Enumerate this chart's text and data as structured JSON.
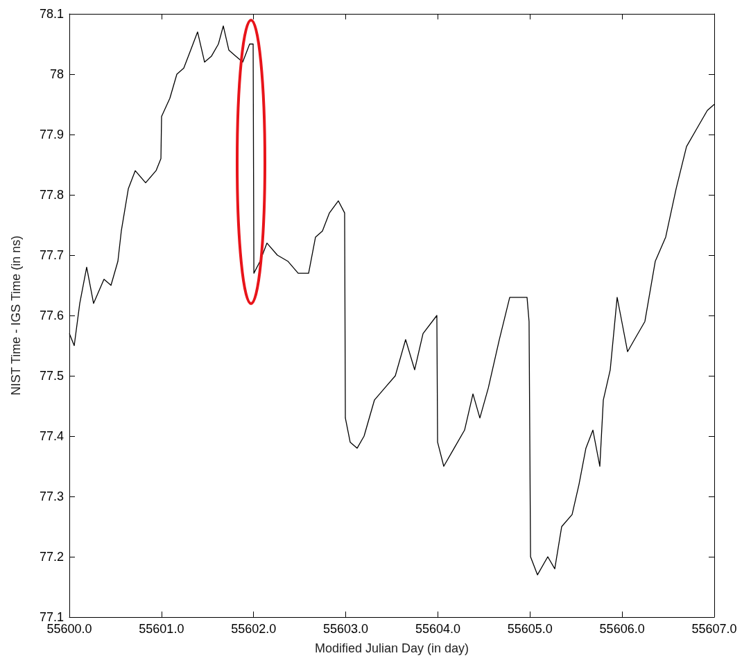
{
  "chart_data": {
    "type": "line",
    "xlabel": "Modified Julian Day (in day)",
    "ylabel": "NIST Time - IGS Time (in ns)",
    "x": [
      55600,
      55600.053,
      55600.113,
      55600.188,
      55600.263,
      55600.376,
      55600.452,
      55600.527,
      55600.564,
      55600.64,
      55600.715,
      55600.828,
      55600.941,
      55600.994,
      55601.001,
      55601.091,
      55601.167,
      55601.242,
      55601.317,
      55601.392,
      55601.468,
      55601.543,
      55601.618,
      55601.671,
      55601.731,
      55601.806,
      55601.882,
      55601.957,
      55601.995,
      55602.003,
      55602.07,
      55602.145,
      55602.258,
      55602.371,
      55602.484,
      55602.597,
      55602.672,
      55602.747,
      55602.823,
      55602.92,
      55602.988,
      55602.996,
      55603.048,
      55603.124,
      55603.199,
      55603.312,
      55603.425,
      55603.538,
      55603.65,
      55603.748,
      55603.839,
      55603.989,
      55603.997,
      55604.064,
      55604.177,
      55604.29,
      55604.381,
      55604.456,
      55604.548,
      55604.667,
      55604.78,
      55604.892,
      55604.968,
      55604.99,
      55605.006,
      55605.081,
      55605.193,
      55605.269,
      55605.344,
      55605.457,
      55605.532,
      55605.607,
      55605.683,
      55605.758,
      55605.796,
      55605.871,
      55605.946,
      55605.984,
      55606.059,
      55606.134,
      55606.247,
      55606.36,
      55606.473,
      55606.586,
      55606.699,
      55606.812,
      55606.925,
      55607
    ],
    "series": [
      {
        "color": "#000000",
        "values": [
          77.57,
          77.55,
          77.62,
          77.68,
          77.62,
          77.66,
          77.65,
          77.69,
          77.74,
          77.81,
          77.84,
          77.82,
          77.84,
          77.86,
          77.93,
          77.96,
          78.0,
          78.01,
          78.04,
          78.07,
          78.02,
          78.03,
          78.05,
          78.08,
          78.04,
          78.03,
          78.02,
          78.05,
          78.05,
          77.67,
          77.69,
          77.72,
          77.7,
          77.69,
          77.67,
          77.67,
          77.73,
          77.74,
          77.77,
          77.79,
          77.77,
          77.43,
          77.39,
          77.38,
          77.4,
          77.46,
          77.48,
          77.5,
          77.56,
          77.51,
          77.57,
          77.6,
          77.39,
          77.35,
          77.38,
          77.41,
          77.47,
          77.43,
          77.48,
          77.56,
          77.63,
          77.63,
          77.63,
          77.59,
          77.2,
          77.17,
          77.2,
          77.18,
          77.25,
          77.27,
          77.32,
          77.38,
          77.41,
          77.35,
          77.46,
          77.51,
          77.63,
          77.6,
          77.54,
          77.56,
          77.59,
          77.69,
          77.73,
          77.81,
          77.88,
          77.91,
          77.94,
          77.95
        ]
      }
    ],
    "xlim": [
      55600,
      55607
    ],
    "xticks": [
      {
        "value": 55600,
        "label": "55600.0"
      },
      {
        "value": 55601,
        "label": "55601.0"
      },
      {
        "value": 55602,
        "label": "55602.0"
      },
      {
        "value": 55603,
        "label": "55603.0"
      },
      {
        "value": 55604,
        "label": "55604.0"
      },
      {
        "value": 55605,
        "label": "55605.0"
      },
      {
        "value": 55606,
        "label": "55606.0"
      },
      {
        "value": 55607,
        "label": "55607.0"
      }
    ],
    "ylim": [
      77.1,
      78.1
    ],
    "yticks": [
      77.1,
      77.2,
      77.3,
      77.4,
      77.5,
      77.6,
      77.7,
      77.8,
      77.9,
      78,
      78.1
    ],
    "grid": false,
    "marker": "none",
    "line_style": "solid"
  }
}
